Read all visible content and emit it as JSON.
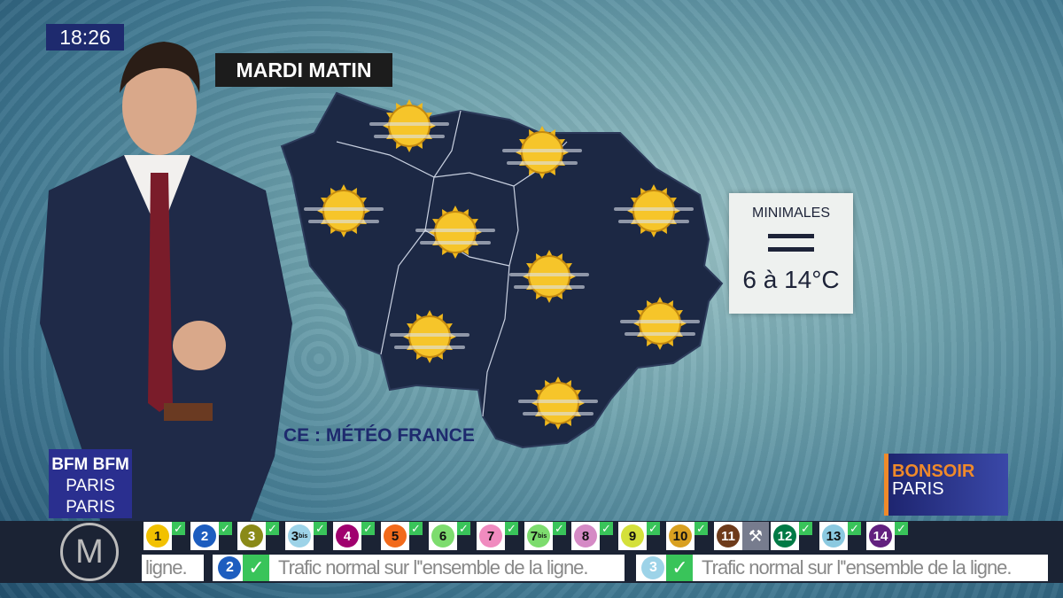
{
  "clock": "18:26",
  "title": "MARDI MATIN",
  "source": "CE : MÉTÉO FRANCE",
  "weather_icons": [
    "sun",
    "sun",
    "sun",
    "sun",
    "sun",
    "sun",
    "sun",
    "sun",
    "sun"
  ],
  "minimales": {
    "label": "MINIMALES",
    "trend": "equal",
    "value": "6 à 14°C"
  },
  "logos": {
    "channel_top": "BFM BFM",
    "channel_bottom": "PARIS PARIS",
    "show_top": "BONSOIR",
    "show_bottom": "PARIS",
    "metro": "M"
  },
  "metro_lines": [
    {
      "num": "1",
      "color": "#f2c100",
      "status": "ok"
    },
    {
      "num": "2",
      "color": "#1d5dbf",
      "status": "ok"
    },
    {
      "num": "3",
      "color": "#8a8a18",
      "status": "ok"
    },
    {
      "num": "3",
      "sup": "bis",
      "color": "#9dd3e8",
      "status": "ok"
    },
    {
      "num": "4",
      "color": "#a0006e",
      "status": "ok"
    },
    {
      "num": "5",
      "color": "#f26a1b",
      "status": "ok"
    },
    {
      "num": "6",
      "color": "#7ddc6e",
      "status": "ok"
    },
    {
      "num": "7",
      "color": "#f08bbf",
      "status": "ok"
    },
    {
      "num": "7",
      "sup": "bis",
      "color": "#7ddc6e",
      "status": "ok"
    },
    {
      "num": "8",
      "color": "#d58ac5",
      "status": "ok"
    },
    {
      "num": "9",
      "color": "#d4e03a",
      "status": "ok"
    },
    {
      "num": "10",
      "color": "#d9a020",
      "status": "ok"
    },
    {
      "num": "11",
      "color": "#6e3b1b",
      "status": "works"
    },
    {
      "num": "12",
      "color": "#007a45",
      "status": "ok"
    },
    {
      "num": "13",
      "color": "#8bc9e0",
      "status": "ok"
    },
    {
      "num": "14",
      "color": "#62207f",
      "status": "ok"
    }
  ],
  "ticker": [
    {
      "text": "ligne."
    },
    {
      "line": "2",
      "color": "#1d5dbf",
      "text": "Trafic normal sur l''ensemble de la ligne."
    },
    {
      "line": "3bis",
      "color": "#9dd3e8",
      "text": "Trafic normal sur l''ensemble de la ligne."
    }
  ]
}
